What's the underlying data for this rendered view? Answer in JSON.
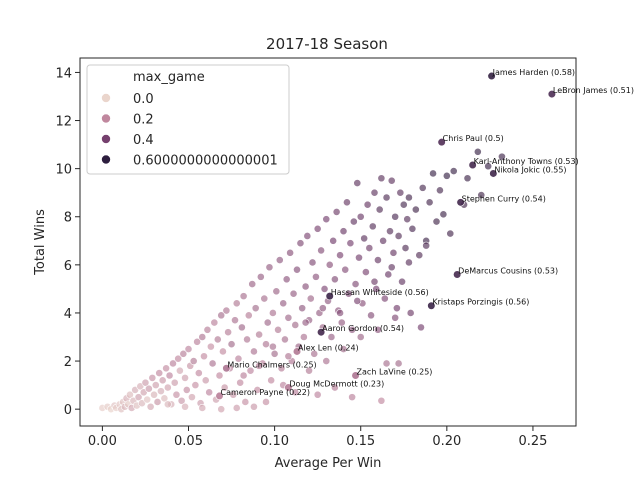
{
  "chart_data": {
    "type": "scatter",
    "title": "2017-18 Season",
    "xlabel": "Average Per Win",
    "ylabel": "Total Wins",
    "xlim": [
      -0.013,
      0.275
    ],
    "ylim": [
      -0.7,
      14.6
    ],
    "xticks": [
      "0.00",
      "0.05",
      "0.10",
      "0.15",
      "0.20",
      "0.25"
    ],
    "yticks": [
      "0",
      "2",
      "4",
      "6",
      "8",
      "10",
      "12",
      "14"
    ],
    "grid": false,
    "legend": {
      "title": "max_game",
      "placement": "top-left",
      "entries": [
        {
          "label": "0.0",
          "color": "#ead5cc"
        },
        {
          "label": "0.2",
          "color": "#c0879e"
        },
        {
          "label": "0.4",
          "color": "#75406e"
        },
        {
          "label": "0.6000000000000001",
          "color": "#2d1e3e"
        }
      ]
    },
    "hue_colors": [
      "#ead5cc",
      "#c0879e",
      "#75406e",
      "#2d1e3e"
    ],
    "labeled_points": [
      {
        "name": "James Harden (0.58)",
        "x": 0.226,
        "y": 13.85,
        "max_game": 0.58
      },
      {
        "name": "LeBron James (0.51)",
        "x": 0.261,
        "y": 13.1,
        "max_game": 0.51
      },
      {
        "name": "Chris Paul (0.5)",
        "x": 0.197,
        "y": 11.1,
        "max_game": 0.5
      },
      {
        "name": "Karl-Anthony Towns (0.53)",
        "x": 0.215,
        "y": 10.15,
        "max_game": 0.53
      },
      {
        "name": "Nikola Jokic (0.55)",
        "x": 0.227,
        "y": 9.8,
        "max_game": 0.55
      },
      {
        "name": "Stephen Curry (0.54)",
        "x": 0.208,
        "y": 8.6,
        "max_game": 0.54
      },
      {
        "name": "DeMarcus Cousins (0.53)",
        "x": 0.206,
        "y": 5.6,
        "max_game": 0.53
      },
      {
        "name": "Hassan Whiteside (0.56)",
        "x": 0.132,
        "y": 4.7,
        "max_game": 0.56
      },
      {
        "name": "Kristaps Porzingis (0.56)",
        "x": 0.191,
        "y": 4.3,
        "max_game": 0.56
      },
      {
        "name": "Aaron Gordon (0.54)",
        "x": 0.127,
        "y": 3.2,
        "max_game": 0.54
      },
      {
        "name": "Alex Len (0.24)",
        "x": 0.113,
        "y": 2.4,
        "max_game": 0.24
      },
      {
        "name": "Mario Chalmers (0.25)",
        "x": 0.072,
        "y": 1.7,
        "max_game": 0.25
      },
      {
        "name": "Zach LaVine (0.25)",
        "x": 0.147,
        "y": 1.4,
        "max_game": 0.25
      },
      {
        "name": "Doug McDermott (0.23)",
        "x": 0.108,
        "y": 0.9,
        "max_game": 0.23
      },
      {
        "name": "Cameron Payne (0.22)",
        "x": 0.068,
        "y": 0.55,
        "max_game": 0.22
      }
    ],
    "points": [
      [
        0.0,
        0.05,
        0.02
      ],
      [
        0.003,
        0.1,
        0.03
      ],
      [
        0.005,
        0.0,
        0.01
      ],
      [
        0.007,
        0.15,
        0.05
      ],
      [
        0.008,
        0.05,
        0.02
      ],
      [
        0.01,
        0.2,
        0.04
      ],
      [
        0.011,
        0.0,
        0.06
      ],
      [
        0.012,
        0.3,
        0.05
      ],
      [
        0.013,
        0.1,
        0.08
      ],
      [
        0.014,
        0.45,
        0.1
      ],
      [
        0.015,
        0.2,
        0.03
      ],
      [
        0.016,
        0.6,
        0.07
      ],
      [
        0.017,
        0.05,
        0.12
      ],
      [
        0.018,
        0.35,
        0.09
      ],
      [
        0.019,
        0.8,
        0.11
      ],
      [
        0.02,
        0.15,
        0.06
      ],
      [
        0.021,
        0.5,
        0.14
      ],
      [
        0.022,
        0.95,
        0.1
      ],
      [
        0.023,
        0.25,
        0.08
      ],
      [
        0.024,
        0.7,
        0.13
      ],
      [
        0.025,
        1.1,
        0.15
      ],
      [
        0.026,
        0.4,
        0.05
      ],
      [
        0.027,
        0.85,
        0.16
      ],
      [
        0.028,
        0.1,
        0.12
      ],
      [
        0.029,
        1.3,
        0.18
      ],
      [
        0.03,
        0.6,
        0.09
      ],
      [
        0.031,
        1.0,
        0.14
      ],
      [
        0.032,
        0.3,
        0.17
      ],
      [
        0.033,
        1.5,
        0.2
      ],
      [
        0.034,
        0.75,
        0.11
      ],
      [
        0.035,
        1.2,
        0.16
      ],
      [
        0.036,
        0.45,
        0.07
      ],
      [
        0.037,
        1.7,
        0.19
      ],
      [
        0.038,
        0.9,
        0.13
      ],
      [
        0.039,
        1.4,
        0.21
      ],
      [
        0.04,
        0.2,
        0.1
      ],
      [
        0.041,
        1.9,
        0.22
      ],
      [
        0.042,
        1.1,
        0.15
      ],
      [
        0.043,
        0.6,
        0.18
      ],
      [
        0.044,
        2.1,
        0.2
      ],
      [
        0.045,
        1.6,
        0.12
      ],
      [
        0.046,
        0.35,
        0.16
      ],
      [
        0.047,
        2.3,
        0.23
      ],
      [
        0.048,
        1.3,
        0.14
      ],
      [
        0.049,
        0.8,
        0.19
      ],
      [
        0.05,
        2.5,
        0.21
      ],
      [
        0.051,
        1.8,
        0.17
      ],
      [
        0.052,
        0.5,
        0.13
      ],
      [
        0.053,
        2.0,
        0.24
      ],
      [
        0.054,
        1.0,
        0.18
      ],
      [
        0.055,
        2.8,
        0.22
      ],
      [
        0.056,
        1.5,
        0.2
      ],
      [
        0.057,
        0.25,
        0.15
      ],
      [
        0.058,
        3.0,
        0.25
      ],
      [
        0.059,
        2.2,
        0.19
      ],
      [
        0.06,
        1.2,
        0.16
      ],
      [
        0.061,
        3.3,
        0.23
      ],
      [
        0.062,
        0.7,
        0.21
      ],
      [
        0.063,
        2.6,
        0.18
      ],
      [
        0.064,
        1.9,
        0.26
      ],
      [
        0.065,
        3.6,
        0.22
      ],
      [
        0.066,
        0.4,
        0.14
      ],
      [
        0.067,
        2.9,
        0.24
      ],
      [
        0.068,
        1.4,
        0.2
      ],
      [
        0.069,
        3.9,
        0.27
      ],
      [
        0.07,
        2.4,
        0.19
      ],
      [
        0.071,
        0.9,
        0.17
      ],
      [
        0.072,
        4.1,
        0.25
      ],
      [
        0.073,
        3.2,
        0.23
      ],
      [
        0.074,
        1.7,
        0.21
      ],
      [
        0.075,
        2.7,
        0.28
      ],
      [
        0.076,
        0.6,
        0.16
      ],
      [
        0.077,
        3.7,
        0.26
      ],
      [
        0.078,
        4.4,
        0.24
      ],
      [
        0.079,
        2.1,
        0.22
      ],
      [
        0.08,
        1.1,
        0.2
      ],
      [
        0.081,
        3.4,
        0.29
      ],
      [
        0.082,
        4.7,
        0.27
      ],
      [
        0.083,
        0.3,
        0.18
      ],
      [
        0.084,
        2.9,
        0.25
      ],
      [
        0.085,
        3.9,
        0.23
      ],
      [
        0.086,
        1.6,
        0.21
      ],
      [
        0.087,
        5.2,
        0.3
      ],
      [
        0.088,
        2.4,
        0.26
      ],
      [
        0.089,
        4.2,
        0.28
      ],
      [
        0.09,
        0.8,
        0.19
      ],
      [
        0.091,
        3.1,
        0.24
      ],
      [
        0.092,
        5.5,
        0.31
      ],
      [
        0.093,
        1.9,
        0.22
      ],
      [
        0.094,
        4.6,
        0.27
      ],
      [
        0.095,
        2.7,
        0.25
      ],
      [
        0.096,
        3.6,
        0.29
      ],
      [
        0.097,
        5.9,
        0.32
      ],
      [
        0.098,
        1.2,
        0.2
      ],
      [
        0.099,
        4.0,
        0.26
      ],
      [
        0.1,
        2.3,
        0.28
      ],
      [
        0.101,
        4.9,
        0.3
      ],
      [
        0.102,
        3.3,
        0.24
      ],
      [
        0.103,
        6.2,
        0.33
      ],
      [
        0.104,
        1.7,
        0.23
      ],
      [
        0.105,
        4.4,
        0.31
      ],
      [
        0.106,
        2.9,
        0.27
      ],
      [
        0.107,
        5.4,
        0.34
      ],
      [
        0.108,
        3.8,
        0.29
      ],
      [
        0.109,
        6.5,
        0.35
      ],
      [
        0.11,
        2.0,
        0.25
      ],
      [
        0.111,
        4.8,
        0.32
      ],
      [
        0.112,
        3.5,
        0.28
      ],
      [
        0.113,
        5.8,
        0.36
      ],
      [
        0.114,
        2.6,
        0.3
      ],
      [
        0.115,
        6.9,
        0.37
      ],
      [
        0.116,
        4.2,
        0.33
      ],
      [
        0.117,
        3.0,
        0.26
      ],
      [
        0.118,
        5.1,
        0.35
      ],
      [
        0.119,
        7.2,
        0.38
      ],
      [
        0.12,
        3.7,
        0.31
      ],
      [
        0.121,
        4.6,
        0.29
      ],
      [
        0.122,
        6.1,
        0.37
      ],
      [
        0.123,
        2.3,
        0.27
      ],
      [
        0.124,
        5.5,
        0.34
      ],
      [
        0.125,
        7.5,
        0.39
      ],
      [
        0.126,
        4.0,
        0.32
      ],
      [
        0.127,
        6.6,
        0.36
      ],
      [
        0.128,
        3.4,
        0.3
      ],
      [
        0.129,
        5.0,
        0.38
      ],
      [
        0.13,
        7.9,
        0.4
      ],
      [
        0.131,
        4.5,
        0.33
      ],
      [
        0.132,
        6.0,
        0.35
      ],
      [
        0.133,
        3.0,
        0.31
      ],
      [
        0.134,
        7.0,
        0.41
      ],
      [
        0.135,
        5.4,
        0.37
      ],
      [
        0.136,
        8.2,
        0.42
      ],
      [
        0.137,
        4.1,
        0.34
      ],
      [
        0.138,
        6.4,
        0.39
      ],
      [
        0.139,
        3.6,
        0.32
      ],
      [
        0.14,
        7.4,
        0.43
      ],
      [
        0.141,
        5.8,
        0.36
      ],
      [
        0.142,
        8.6,
        0.44
      ],
      [
        0.143,
        4.8,
        0.38
      ],
      [
        0.144,
        6.9,
        0.4
      ],
      [
        0.145,
        3.3,
        0.33
      ],
      [
        0.146,
        7.8,
        0.45
      ],
      [
        0.147,
        5.2,
        0.37
      ],
      [
        0.148,
        9.4,
        0.46
      ],
      [
        0.149,
        6.3,
        0.41
      ],
      [
        0.15,
        8.0,
        0.43
      ],
      [
        0.151,
        4.4,
        0.35
      ],
      [
        0.152,
        7.1,
        0.47
      ],
      [
        0.153,
        5.7,
        0.39
      ],
      [
        0.154,
        8.5,
        0.44
      ],
      [
        0.155,
        6.7,
        0.42
      ],
      [
        0.156,
        3.9,
        0.36
      ],
      [
        0.157,
        7.6,
        0.48
      ],
      [
        0.158,
        9.0,
        0.46
      ],
      [
        0.159,
        5.0,
        0.4
      ],
      [
        0.16,
        6.2,
        0.44
      ],
      [
        0.161,
        8.3,
        0.49
      ],
      [
        0.162,
        9.6,
        0.47
      ],
      [
        0.163,
        7.0,
        0.45
      ],
      [
        0.164,
        4.6,
        0.38
      ],
      [
        0.165,
        8.8,
        0.5
      ],
      [
        0.166,
        5.6,
        0.43
      ],
      [
        0.167,
        7.4,
        0.48
      ],
      [
        0.168,
        9.5,
        0.46
      ],
      [
        0.169,
        6.5,
        0.44
      ],
      [
        0.17,
        8.0,
        0.51
      ],
      [
        0.171,
        4.2,
        0.41
      ],
      [
        0.172,
        7.2,
        0.49
      ],
      [
        0.173,
        9.0,
        0.47
      ],
      [
        0.174,
        5.3,
        0.45
      ],
      [
        0.175,
        8.5,
        0.52
      ],
      [
        0.176,
        6.7,
        0.5
      ],
      [
        0.177,
        7.9,
        0.48
      ],
      [
        0.178,
        8.8,
        0.53
      ],
      [
        0.179,
        4.0,
        0.42
      ],
      [
        0.18,
        7.5,
        0.51
      ],
      [
        0.182,
        8.3,
        0.54
      ],
      [
        0.184,
        6.4,
        0.49
      ],
      [
        0.186,
        9.2,
        0.52
      ],
      [
        0.188,
        7.0,
        0.55
      ],
      [
        0.19,
        8.6,
        0.53
      ],
      [
        0.192,
        9.8,
        0.56
      ],
      [
        0.194,
        7.8,
        0.54
      ],
      [
        0.196,
        9.1,
        0.52
      ],
      [
        0.198,
        8.1,
        0.55
      ],
      [
        0.2,
        9.7,
        0.57
      ],
      [
        0.202,
        7.3,
        0.53
      ],
      [
        0.204,
        9.9,
        0.56
      ],
      [
        0.21,
        8.5,
        0.54
      ],
      [
        0.212,
        9.6,
        0.55
      ],
      [
        0.218,
        10.7,
        0.57
      ],
      [
        0.224,
        10.1,
        0.56
      ],
      [
        0.232,
        10.5,
        0.55
      ],
      [
        0.22,
        8.9,
        0.54
      ],
      [
        0.12,
        1.6,
        0.24
      ],
      [
        0.13,
        2.0,
        0.26
      ],
      [
        0.14,
        2.5,
        0.28
      ],
      [
        0.15,
        3.0,
        0.3
      ],
      [
        0.16,
        3.3,
        0.34
      ],
      [
        0.17,
        3.8,
        0.37
      ],
      [
        0.185,
        3.4,
        0.4
      ],
      [
        0.165,
        1.9,
        0.27
      ],
      [
        0.172,
        1.9,
        0.28
      ],
      [
        0.112,
        0.7,
        0.22
      ],
      [
        0.125,
        0.6,
        0.21
      ],
      [
        0.135,
        0.9,
        0.23
      ],
      [
        0.145,
        0.5,
        0.22
      ],
      [
        0.162,
        0.35,
        0.2
      ],
      [
        0.095,
        0.3,
        0.18
      ],
      [
        0.105,
        1.0,
        0.21
      ],
      [
        0.088,
        0.1,
        0.16
      ],
      [
        0.078,
        0.05,
        0.15
      ],
      [
        0.069,
        0.0,
        0.13
      ],
      [
        0.058,
        0.05,
        0.12
      ],
      [
        0.048,
        0.1,
        0.1
      ],
      [
        0.038,
        0.2,
        0.08
      ],
      [
        0.082,
        1.4,
        0.22
      ],
      [
        0.091,
        1.8,
        0.24
      ],
      [
        0.099,
        2.6,
        0.27
      ],
      [
        0.108,
        2.2,
        0.25
      ],
      [
        0.118,
        3.6,
        0.31
      ],
      [
        0.128,
        4.2,
        0.34
      ],
      [
        0.138,
        4.0,
        0.36
      ],
      [
        0.148,
        4.5,
        0.39
      ],
      [
        0.158,
        5.3,
        0.42
      ],
      [
        0.168,
        5.9,
        0.45
      ],
      [
        0.178,
        6.1,
        0.47
      ],
      [
        0.188,
        6.8,
        0.5
      ]
    ]
  }
}
